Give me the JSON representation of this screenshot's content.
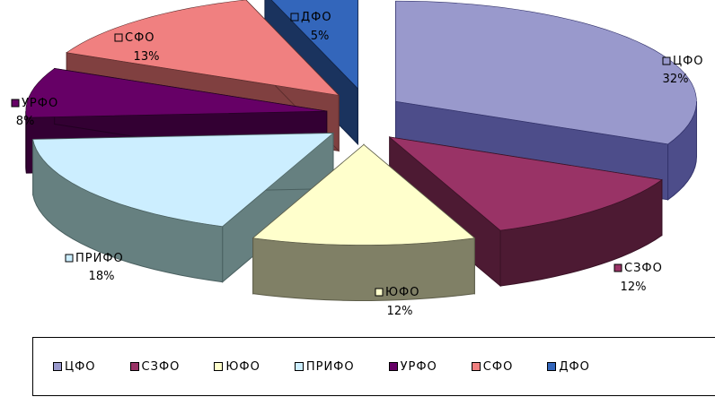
{
  "chart_data": {
    "type": "pie",
    "title": "",
    "style": "3d-exploded",
    "legend_position": "bottom",
    "slices": [
      {
        "label": "ЦФО",
        "value": 32,
        "value_label": "32%",
        "color": "#9999cc",
        "side_color": "#4d4d8a",
        "edge_color": "#33336b"
      },
      {
        "label": "СЗФО",
        "value": 12,
        "value_label": "12%",
        "color": "#993366",
        "side_color": "#4d1a33",
        "edge_color": "#3a1226"
      },
      {
        "label": "ЮФО",
        "value": 12,
        "value_label": "12%",
        "color": "#ffffcc",
        "side_color": "#808066",
        "edge_color": "#5c5c48"
      },
      {
        "label": "ПРИФО",
        "value": 18,
        "value_label": "18%",
        "color": "#cceeff",
        "side_color": "#668080",
        "edge_color": "#4a6060"
      },
      {
        "label": "УРФО",
        "value": 8,
        "value_label": "8%",
        "color": "#660066",
        "side_color": "#330033",
        "edge_color": "#220022"
      },
      {
        "label": "СФО",
        "value": 13,
        "value_label": "13%",
        "color": "#f08080",
        "side_color": "#804040",
        "edge_color": "#5c2d2d"
      },
      {
        "label": "ДФО",
        "value": 5,
        "value_label": "5%",
        "color": "#3366bb",
        "side_color": "#1a335e",
        "edge_color": "#112244"
      }
    ]
  }
}
